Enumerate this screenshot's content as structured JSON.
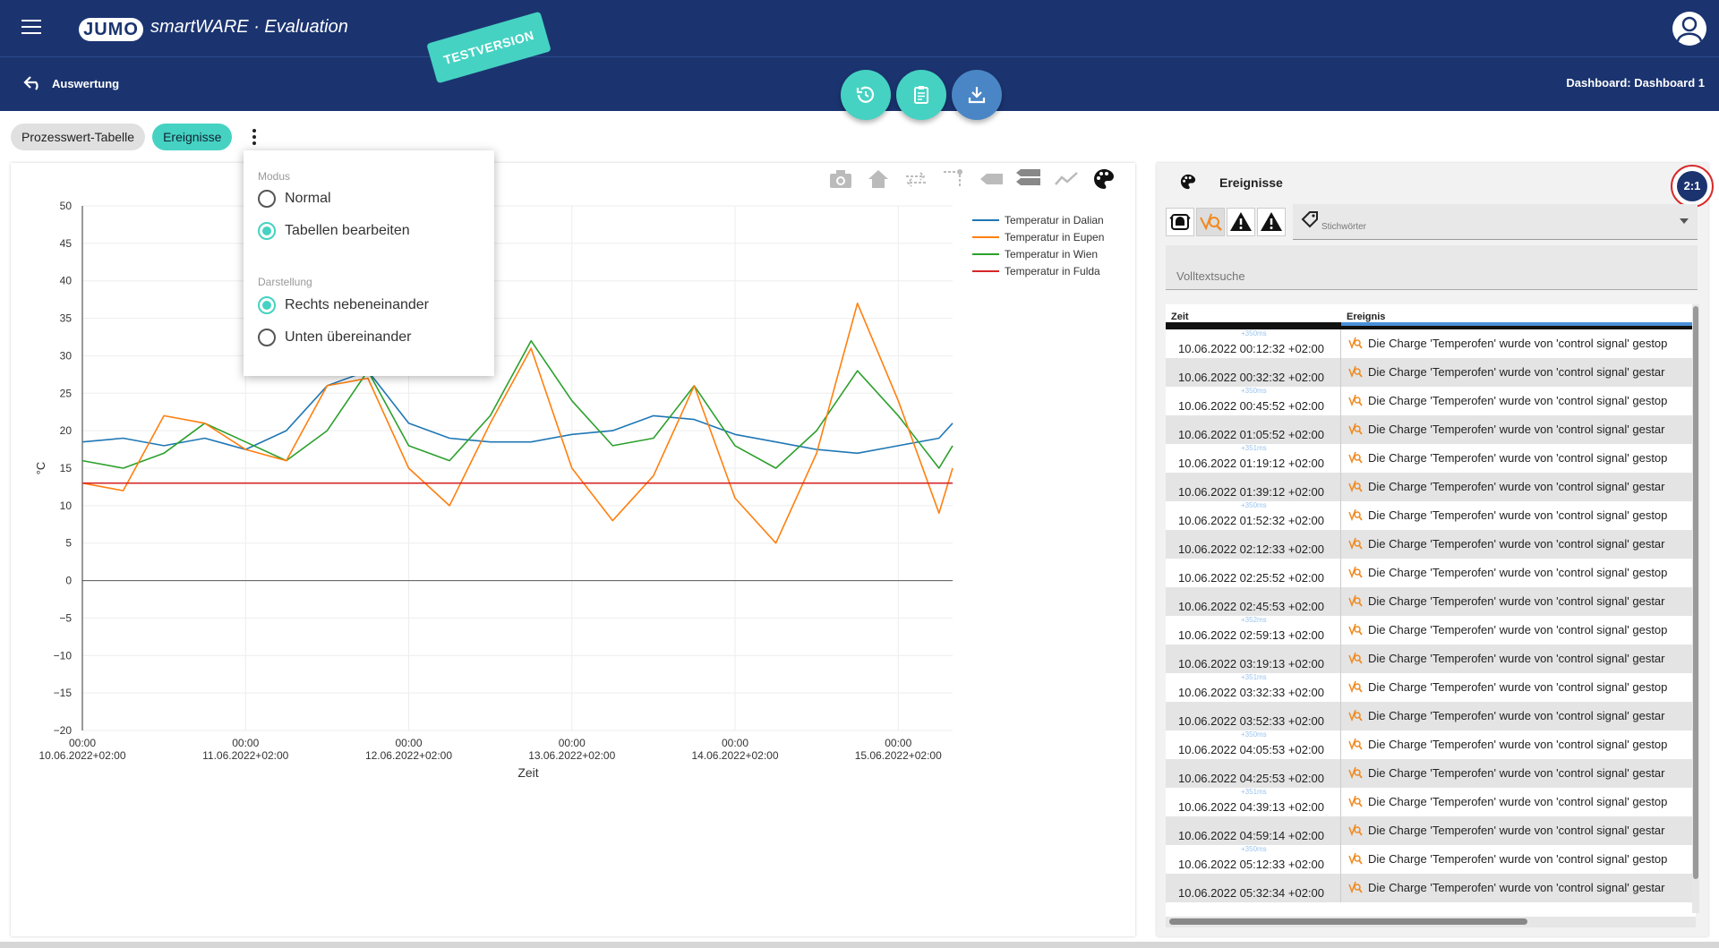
{
  "header": {
    "logo": "JUMO",
    "app_title": "smartWARE · Evaluation",
    "testversion": "TESTVERSION"
  },
  "subbar": {
    "back_label": "Auswertung",
    "dashboard_label": "Dashboard: Dashboard 1"
  },
  "tabs": {
    "prozess": "Prozesswert-Tabelle",
    "ereignisse": "Ereignisse"
  },
  "popup": {
    "modus_heading": "Modus",
    "modus_options": [
      "Normal",
      "Tabellen bearbeiten"
    ],
    "modus_selected": 1,
    "darstellung_heading": "Darstellung",
    "darstellung_options": [
      "Rechts nebeneinander",
      "Unten übereinander"
    ],
    "darstellung_selected": 0
  },
  "chart_data": {
    "type": "line",
    "xlabel": "Zeit",
    "ylabel": "°C",
    "ylim": [
      -20,
      50
    ],
    "yticks": [
      "50",
      "45",
      "40",
      "35",
      "30",
      "25",
      "20",
      "15",
      "10",
      "5",
      "0",
      "−5",
      "−10",
      "−15",
      "−20"
    ],
    "xticks": [
      {
        "time": "00:00",
        "date": "10.06.2022+02:00"
      },
      {
        "time": "00:00",
        "date": "11.06.2022+02:00"
      },
      {
        "time": "00:00",
        "date": "12.06.2022+02:00"
      },
      {
        "time": "00:00",
        "date": "13.06.2022+02:00"
      },
      {
        "time": "00:00",
        "date": "14.06.2022+02:00"
      },
      {
        "time": "00:00",
        "date": "15.06.2022+02:00"
      }
    ],
    "x_hours": [
      0,
      6,
      12,
      18,
      24,
      30,
      36,
      42,
      48,
      54,
      60,
      66,
      72,
      78,
      84,
      90,
      96,
      102,
      108,
      114,
      120,
      126,
      128
    ],
    "legend_position": "top-right",
    "series": [
      {
        "name": "Temperatur in Dalian",
        "color": "#1f77b4",
        "values": [
          18.5,
          19,
          18,
          19,
          17.5,
          20,
          26,
          28,
          21,
          19,
          18.5,
          18.5,
          19.5,
          20,
          22,
          21.5,
          19.5,
          18.5,
          17.5,
          17,
          18,
          19,
          21
        ]
      },
      {
        "name": "Temperatur in Eupen",
        "color": "#ff7f0e",
        "values": [
          13,
          12,
          22,
          21,
          17.5,
          16,
          26,
          27,
          15,
          10,
          21,
          31,
          15,
          8,
          14,
          26,
          11,
          5,
          17,
          37,
          24,
          9,
          15
        ]
      },
      {
        "name": "Temperatur in Wien",
        "color": "#2ca02c",
        "values": [
          16,
          15,
          17,
          21,
          18.5,
          16,
          20,
          28,
          18,
          16,
          22,
          32,
          24,
          18,
          19,
          26,
          18,
          15,
          20,
          28,
          22,
          15,
          18
        ]
      },
      {
        "name": "Temperatur in Fulda",
        "color": "#d62728",
        "values": [
          13,
          13,
          13,
          13,
          13,
          13,
          13,
          13,
          13,
          13,
          13,
          13,
          13,
          13,
          13,
          13,
          13,
          13,
          13,
          13,
          13,
          13,
          13
        ]
      }
    ]
  },
  "events": {
    "title": "Ereignisse",
    "ratio": "2:1",
    "keywords_label": "Stichwörter",
    "search_placeholder": "Volltextsuche",
    "col_time": "Zeit",
    "col_event": "Ereignis",
    "rows": [
      {
        "ms": "+350ms",
        "time": "10.06.2022 00:12:32 +02:00",
        "text": "Die Charge 'Temperofen' wurde von 'control signal' gestop"
      },
      {
        "ms": "",
        "time": "10.06.2022 00:32:32 +02:00",
        "text": "Die Charge 'Temperofen' wurde von 'control signal' gestar"
      },
      {
        "ms": "+350ms",
        "time": "10.06.2022 00:45:52 +02:00",
        "text": "Die Charge 'Temperofen' wurde von 'control signal' gestop"
      },
      {
        "ms": "",
        "time": "10.06.2022 01:05:52 +02:00",
        "text": "Die Charge 'Temperofen' wurde von 'control signal' gestar"
      },
      {
        "ms": "+351ms",
        "time": "10.06.2022 01:19:12 +02:00",
        "text": "Die Charge 'Temperofen' wurde von 'control signal' gestop"
      },
      {
        "ms": "",
        "time": "10.06.2022 01:39:12 +02:00",
        "text": "Die Charge 'Temperofen' wurde von 'control signal' gestar"
      },
      {
        "ms": "+350ms",
        "time": "10.06.2022 01:52:32 +02:00",
        "text": "Die Charge 'Temperofen' wurde von 'control signal' gestop"
      },
      {
        "ms": "",
        "time": "10.06.2022 02:12:33 +02:00",
        "text": "Die Charge 'Temperofen' wurde von 'control signal' gestar"
      },
      {
        "ms": "",
        "time": "10.06.2022 02:25:52 +02:00",
        "text": "Die Charge 'Temperofen' wurde von 'control signal' gestop"
      },
      {
        "ms": "",
        "time": "10.06.2022 02:45:53 +02:00",
        "text": "Die Charge 'Temperofen' wurde von 'control signal' gestar"
      },
      {
        "ms": "+352ms",
        "time": "10.06.2022 02:59:13 +02:00",
        "text": "Die Charge 'Temperofen' wurde von 'control signal' gestop"
      },
      {
        "ms": "",
        "time": "10.06.2022 03:19:13 +02:00",
        "text": "Die Charge 'Temperofen' wurde von 'control signal' gestar"
      },
      {
        "ms": "+351ms",
        "time": "10.06.2022 03:32:33 +02:00",
        "text": "Die Charge 'Temperofen' wurde von 'control signal' gestop"
      },
      {
        "ms": "",
        "time": "10.06.2022 03:52:33 +02:00",
        "text": "Die Charge 'Temperofen' wurde von 'control signal' gestar"
      },
      {
        "ms": "+350ms",
        "time": "10.06.2022 04:05:53 +02:00",
        "text": "Die Charge 'Temperofen' wurde von 'control signal' gestop"
      },
      {
        "ms": "",
        "time": "10.06.2022 04:25:53 +02:00",
        "text": "Die Charge 'Temperofen' wurde von 'control signal' gestar"
      },
      {
        "ms": "+351ms",
        "time": "10.06.2022 04:39:13 +02:00",
        "text": "Die Charge 'Temperofen' wurde von 'control signal' gestop"
      },
      {
        "ms": "",
        "time": "10.06.2022 04:59:14 +02:00",
        "text": "Die Charge 'Temperofen' wurde von 'control signal' gestar"
      },
      {
        "ms": "+350ms",
        "time": "10.06.2022 05:12:33 +02:00",
        "text": "Die Charge 'Temperofen' wurde von 'control signal' gestop"
      },
      {
        "ms": "",
        "time": "10.06.2022 05:32:34 +02:00",
        "text": "Die Charge 'Temperofen' wurde von 'control signal' gestar"
      }
    ]
  },
  "colors": {
    "header_bg": "#1b3470",
    "accent": "#45d2c2",
    "download_fab": "#4a86c5",
    "ratio_ring": "#d82a2a",
    "event_icon": "#f08a20"
  }
}
